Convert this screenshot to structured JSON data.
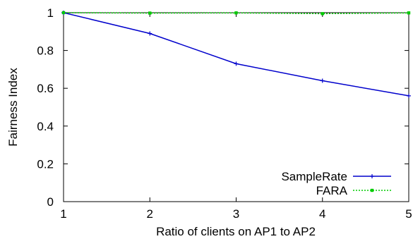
{
  "chart_data": {
    "type": "line",
    "title": "",
    "xlabel": "Ratio of clients on AP1 to AP2",
    "ylabel": "Fairness Index",
    "x": [
      1,
      2,
      3,
      4,
      5
    ],
    "xlim": [
      1,
      5
    ],
    "ylim": [
      0,
      1
    ],
    "xticks": [
      1,
      2,
      3,
      4,
      5
    ],
    "xtick_labels": [
      "1",
      "2",
      "3",
      "4",
      "5"
    ],
    "yticks": [
      0,
      0.2,
      0.4,
      0.6,
      0.8,
      1
    ],
    "ytick_labels": [
      "0",
      "0.2",
      "0.4",
      "0.6",
      "0.8",
      "1"
    ],
    "grid": false,
    "legend_position": "bottom-right",
    "series": [
      {
        "name": "SampleRate",
        "values": [
          1.0,
          0.89,
          0.73,
          0.64,
          0.56
        ],
        "color": "#0000cc",
        "dash": "solid",
        "marker": "plus"
      },
      {
        "name": "FARA",
        "values": [
          1.0,
          0.998,
          0.999,
          0.995,
          0.999
        ],
        "color": "#00cc00",
        "dash": "dotted",
        "marker": "square"
      }
    ]
  }
}
